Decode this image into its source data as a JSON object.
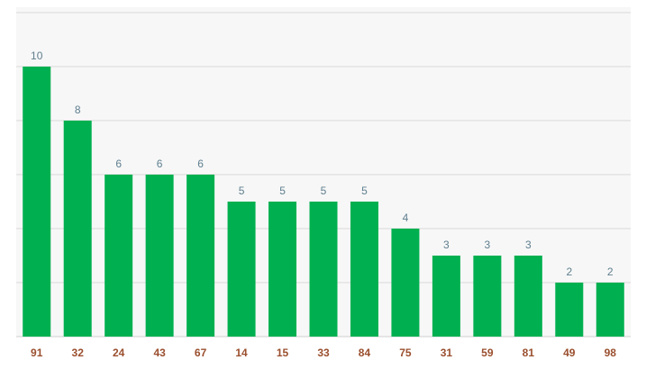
{
  "chart_data": {
    "type": "bar",
    "categories": [
      "91",
      "32",
      "24",
      "43",
      "67",
      "14",
      "15",
      "33",
      "84",
      "75",
      "31",
      "59",
      "81",
      "49",
      "98"
    ],
    "values": [
      10,
      8,
      6,
      6,
      6,
      5,
      5,
      5,
      5,
      4,
      3,
      3,
      3,
      2,
      2
    ],
    "title": "",
    "xlabel": "",
    "ylabel": "",
    "ylim": [
      0,
      12
    ],
    "grid": true,
    "colors": {
      "bar": "#00b050",
      "value_label": "#5f7f8f",
      "category_label": "#9a4f2e",
      "grid": "#d9d9d9",
      "background": "#f7f7f7"
    }
  }
}
